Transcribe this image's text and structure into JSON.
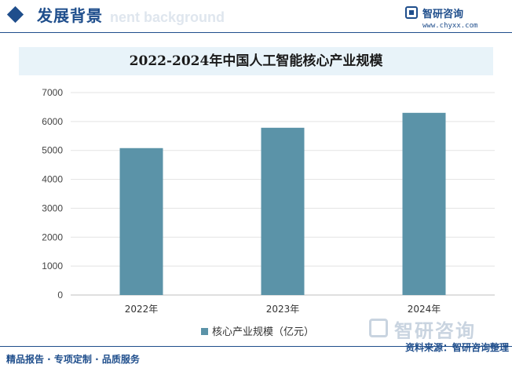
{
  "header": {
    "section_title": "发展背景",
    "ghost_text": "nent background",
    "brand_name": "智研咨询",
    "brand_url": "www.chyxx.com",
    "logo_icon": "chyxx-logo-icon"
  },
  "colors": {
    "primary": "#1f4e8c",
    "bar": "#5b93a8",
    "title_bg": "#e8f3f9"
  },
  "chart_data": {
    "type": "bar",
    "title": "2022-2024年中国人工智能核心产业规模",
    "categories": [
      "2022年",
      "2023年",
      "2024年"
    ],
    "series": [
      {
        "name": "核心产业规模（亿元）",
        "values": [
          5080,
          5784,
          6300
        ]
      }
    ],
    "ylim": [
      0,
      7000
    ],
    "yticks": [
      0,
      1000,
      2000,
      3000,
      4000,
      5000,
      6000,
      7000
    ],
    "grid": true,
    "legend": "bottom"
  },
  "watermark": {
    "text": "智研咨询"
  },
  "footer": {
    "left": "精品报告 · 专项定制 · 品质服务",
    "right": "资料来源：智研咨询整理"
  }
}
